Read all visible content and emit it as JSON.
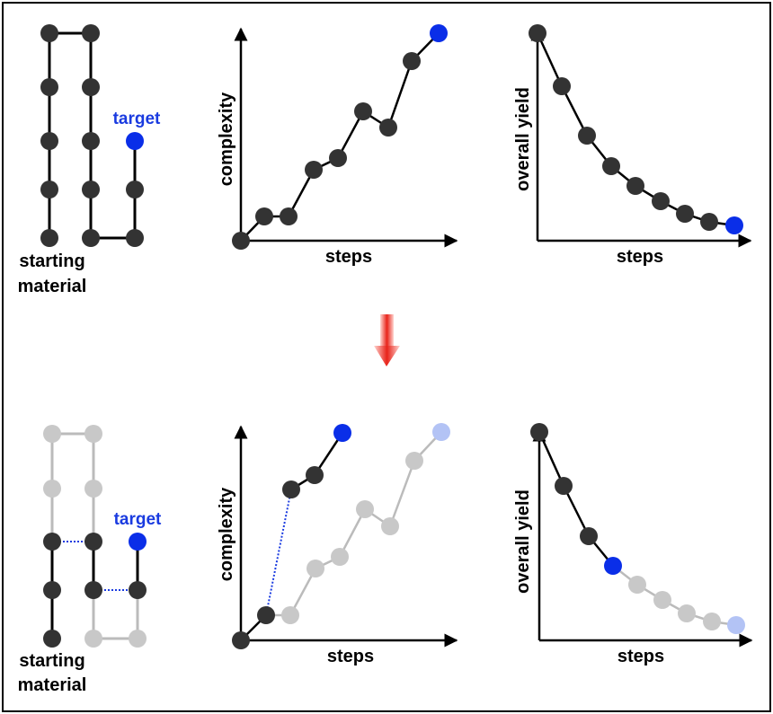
{
  "colors": {
    "node_dark": "#333333",
    "node_faded": "#c8c8c8",
    "node_blue": "#0a2ee8",
    "node_blue_faded": "#b3c3f5",
    "label_blue": "#1a3be0",
    "arrow_red": "#e8231a",
    "axis": "#000000"
  },
  "top": {
    "route": {
      "target_label": "target",
      "start_label_line1": "starting",
      "start_label_line2": "material"
    },
    "complexity_plot": {
      "ylabel": "complexity",
      "xlabel": "steps"
    },
    "yield_plot": {
      "ylabel": "overall yield",
      "xlabel": "steps"
    }
  },
  "transition": {
    "icon": "down-arrow-icon"
  },
  "bottom": {
    "route": {
      "target_label": "target",
      "start_label_line1": "starting",
      "start_label_line2": "material"
    },
    "complexity_plot": {
      "ylabel": "complexity",
      "xlabel": "steps"
    },
    "yield_plot": {
      "ylabel": "overall yield",
      "xlabel": "steps"
    }
  }
}
